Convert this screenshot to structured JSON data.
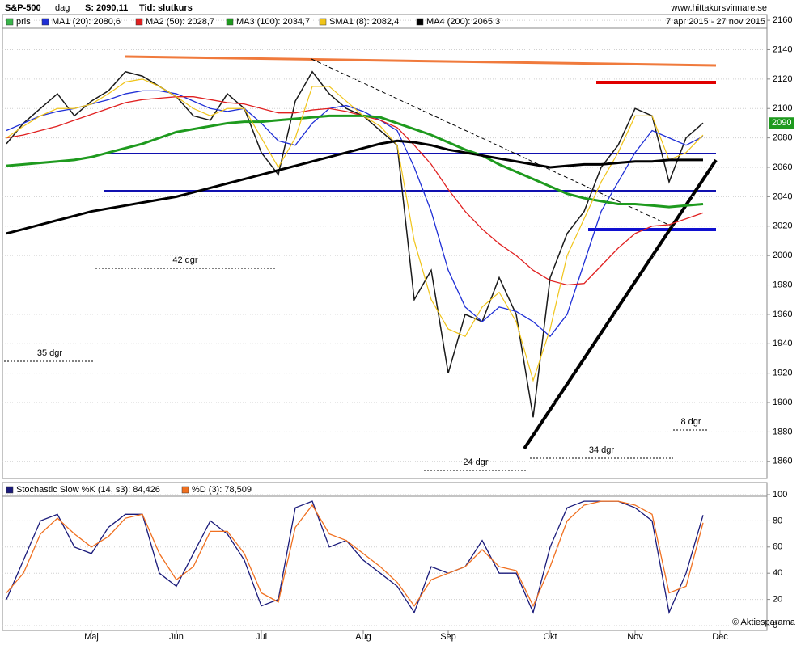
{
  "header": {
    "symbol": "S&P-500",
    "period": "dag",
    "last": "S: 2090,11",
    "mode": "Tid: slutkurs",
    "site": "www.hittakursvinnare.se",
    "range": "7 apr 2015 - 27 nov 2015",
    "credit": "© Aktiesparama"
  },
  "chart_data": [
    {
      "type": "line",
      "last_label": "2090",
      "categories": [
        null,
        null,
        null,
        null,
        null,
        "Maj",
        null,
        null,
        null,
        null,
        "Jun",
        null,
        null,
        null,
        null,
        "Jul",
        null,
        null,
        null,
        null,
        null,
        "Aug",
        null,
        null,
        null,
        null,
        "Sep",
        null,
        null,
        null,
        null,
        null,
        "Okt",
        null,
        null,
        null,
        null,
        "Nov",
        null,
        null,
        null,
        null,
        "Dec"
      ],
      "ylim": [
        1850,
        2165
      ],
      "yticks": [
        1860,
        1880,
        1900,
        1920,
        1940,
        1960,
        1980,
        2000,
        2020,
        2040,
        2060,
        2080,
        2100,
        2120,
        2140,
        2160
      ],
      "grid": true,
      "annotations": [
        "42 dgr",
        "35 dgr",
        "24 dgr",
        "34 dgr",
        "8 dgr"
      ],
      "series": [
        {
          "name": "pris",
          "color": "#1a1a1a",
          "values": [
            2076,
            2090,
            2100,
            2110,
            2095,
            2105,
            2112,
            2125,
            2122,
            2115,
            2108,
            2095,
            2092,
            2110,
            2100,
            2070,
            2055,
            2105,
            2125,
            2110,
            2100,
            2095,
            2085,
            2075,
            1970,
            1990,
            1920,
            1960,
            1955,
            1985,
            1960,
            1890,
            1985,
            2015,
            2030,
            2060,
            2075,
            2100,
            2095,
            2050,
            2080,
            2090.11,
            null
          ]
        },
        {
          "name": "MA1 (20): 2080,6",
          "color": "#1f2fd6",
          "values": [
            2085,
            2090,
            2095,
            2098,
            2100,
            2103,
            2106,
            2110,
            2112,
            2112,
            2110,
            2105,
            2100,
            2098,
            2100,
            2090,
            2078,
            2075,
            2090,
            2100,
            2102,
            2098,
            2092,
            2085,
            2060,
            2030,
            1990,
            1965,
            1955,
            1965,
            1962,
            1955,
            1945,
            1960,
            1995,
            2030,
            2050,
            2070,
            2085,
            2080,
            2075,
            2081,
            null
          ]
        },
        {
          "name": "MA2 (50): 2028,7",
          "color": "#e02020",
          "values": [
            2080,
            2082,
            2085,
            2088,
            2092,
            2096,
            2100,
            2104,
            2106,
            2107,
            2108,
            2108,
            2106,
            2104,
            2103,
            2100,
            2097,
            2097,
            2099,
            2100,
            2098,
            2095,
            2092,
            2087,
            2075,
            2062,
            2045,
            2030,
            2018,
            2008,
            2000,
            1990,
            1983,
            1980,
            1981,
            1993,
            2005,
            2015,
            2020,
            2021,
            2025,
            2029,
            null
          ]
        },
        {
          "name": "MA3 (100): 2034,7",
          "color": "#1e9a1e",
          "values": [
            2061,
            2062,
            2063,
            2064,
            2065,
            2067,
            2070,
            2073,
            2076,
            2080,
            2084,
            2086,
            2088,
            2090,
            2091,
            2091,
            2092,
            2093,
            2094,
            2095,
            2095,
            2095,
            2094,
            2090,
            2086,
            2082,
            2077,
            2072,
            2068,
            2062,
            2057,
            2052,
            2047,
            2042,
            2039,
            2037,
            2035,
            2035,
            2034,
            2033,
            2034,
            2035,
            null
          ]
        },
        {
          "name": "SMA1 (8): 2082,4",
          "color": "#f0c419",
          "values": [
            2080,
            2088,
            2095,
            2100,
            2100,
            2103,
            2110,
            2118,
            2120,
            2115,
            2108,
            2100,
            2095,
            2100,
            2100,
            2080,
            2060,
            2080,
            2115,
            2115,
            2105,
            2095,
            2088,
            2075,
            2010,
            1970,
            1950,
            1945,
            1965,
            1975,
            1955,
            1915,
            1950,
            2000,
            2025,
            2050,
            2070,
            2095,
            2095,
            2065,
            2070,
            2082,
            null
          ]
        },
        {
          "name": "MA4 (200): 2065,3",
          "color": "#000000",
          "values": [
            2015,
            2018,
            2021,
            2024,
            2027,
            2030,
            2032,
            2034,
            2036,
            2038,
            2040,
            2043,
            2046,
            2049,
            2052,
            2055,
            2058,
            2061,
            2064,
            2067,
            2070,
            2073,
            2076,
            2078,
            2077,
            2075,
            2072,
            2070,
            2068,
            2066,
            2064,
            2062,
            2060,
            2061,
            2062,
            2062,
            2063,
            2064,
            2064,
            2065,
            2065,
            2065,
            null
          ]
        }
      ]
    },
    {
      "type": "line",
      "ylim": [
        0,
        100
      ],
      "yticks": [
        0,
        20,
        40,
        60,
        80,
        100
      ],
      "series": [
        {
          "name": "Stochastic Slow %K (14, s3): 84,426",
          "color": "#1a1a7a",
          "values": [
            20,
            50,
            80,
            85,
            60,
            55,
            75,
            85,
            85,
            40,
            30,
            55,
            80,
            70,
            50,
            15,
            20,
            90,
            95,
            60,
            65,
            50,
            40,
            30,
            10,
            45,
            40,
            45,
            65,
            40,
            40,
            10,
            60,
            90,
            95,
            95,
            95,
            90,
            80,
            10,
            40,
            84.4,
            null
          ]
        },
        {
          "name": "%D (3): 78,509",
          "color": "#f07020",
          "values": [
            25,
            40,
            70,
            82,
            70,
            60,
            68,
            82,
            85,
            55,
            35,
            45,
            72,
            72,
            55,
            25,
            18,
            75,
            92,
            70,
            65,
            55,
            45,
            33,
            15,
            35,
            40,
            45,
            58,
            45,
            42,
            15,
            45,
            80,
            92,
            95,
            95,
            92,
            85,
            25,
            30,
            78.5,
            null
          ]
        }
      ]
    }
  ]
}
